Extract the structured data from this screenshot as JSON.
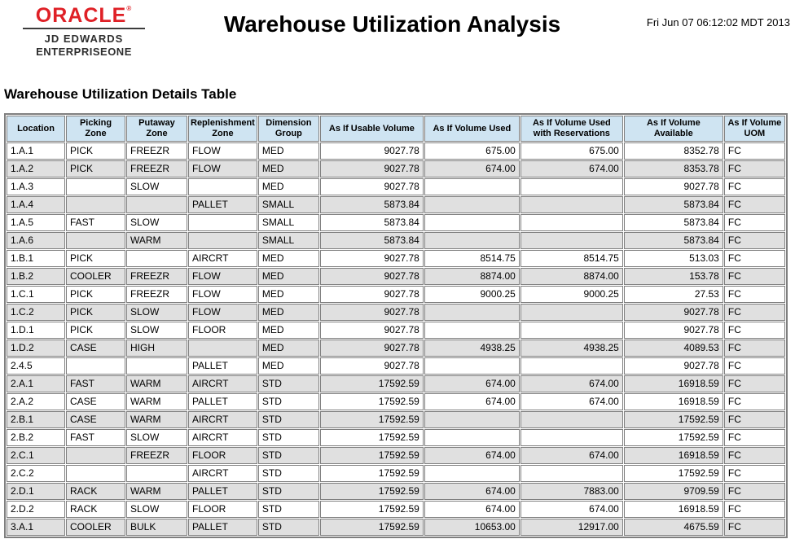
{
  "page": {
    "logo": {
      "brand": "ORACLE",
      "reg_mark": "®",
      "line1": "JD EDWARDS",
      "line2": "ENTERPRISEONE"
    },
    "title": "Warehouse Utilization Analysis",
    "datetime": "Fri Jun 07 06:12:02 MDT 2013",
    "section_title": "Warehouse Utilization Details Table"
  },
  "colors": {
    "oracle_red": "#df2026",
    "table_header_bg": "#cfe4f2",
    "row_alt_bg": "#e0e0e0",
    "table_border": "#7f7f7f"
  },
  "table": {
    "columns": [
      {
        "label": [
          "Location"
        ]
      },
      {
        "label": [
          "Picking",
          "Zone"
        ]
      },
      {
        "label": [
          "Putaway",
          "Zone"
        ]
      },
      {
        "label": [
          "Replenishment",
          "Zone"
        ]
      },
      {
        "label": [
          "Dimension",
          "Group"
        ]
      },
      {
        "label": [
          "As If Usable Volume"
        ]
      },
      {
        "label": [
          "As If Volume Used"
        ]
      },
      {
        "label": [
          "As If Volume Used",
          "with Reservations"
        ]
      },
      {
        "label": [
          "As If Volume Available"
        ]
      },
      {
        "label": [
          "As If Volume",
          "UOM"
        ]
      }
    ],
    "rows": [
      [
        "1.A.1",
        "PICK",
        "FREEZR",
        "FLOW",
        "MED",
        "9027.78",
        "675.00",
        "675.00",
        "8352.78",
        "FC"
      ],
      [
        "1.A.2",
        "PICK",
        "FREEZR",
        "FLOW",
        "MED",
        "9027.78",
        "674.00",
        "674.00",
        "8353.78",
        "FC"
      ],
      [
        "1.A.3",
        "",
        "SLOW",
        "",
        "MED",
        "9027.78",
        "",
        "",
        "9027.78",
        "FC"
      ],
      [
        "1.A.4",
        "",
        "",
        "PALLET",
        "SMALL",
        "5873.84",
        "",
        "",
        "5873.84",
        "FC"
      ],
      [
        "1.A.5",
        "FAST",
        "SLOW",
        "",
        "SMALL",
        "5873.84",
        "",
        "",
        "5873.84",
        "FC"
      ],
      [
        "1.A.6",
        "",
        "WARM",
        "",
        "SMALL",
        "5873.84",
        "",
        "",
        "5873.84",
        "FC"
      ],
      [
        "1.B.1",
        "PICK",
        "",
        "AIRCRT",
        "MED",
        "9027.78",
        "8514.75",
        "8514.75",
        "513.03",
        "FC"
      ],
      [
        "1.B.2",
        "COOLER",
        "FREEZR",
        "FLOW",
        "MED",
        "9027.78",
        "8874.00",
        "8874.00",
        "153.78",
        "FC"
      ],
      [
        "1.C.1",
        "PICK",
        "FREEZR",
        "FLOW",
        "MED",
        "9027.78",
        "9000.25",
        "9000.25",
        "27.53",
        "FC"
      ],
      [
        "1.C.2",
        "PICK",
        "SLOW",
        "FLOW",
        "MED",
        "9027.78",
        "",
        "",
        "9027.78",
        "FC"
      ],
      [
        "1.D.1",
        "PICK",
        "SLOW",
        "FLOOR",
        "MED",
        "9027.78",
        "",
        "",
        "9027.78",
        "FC"
      ],
      [
        "1.D.2",
        "CASE",
        "HIGH",
        "",
        "MED",
        "9027.78",
        "4938.25",
        "4938.25",
        "4089.53",
        "FC"
      ],
      [
        "2.4.5",
        "",
        "",
        "PALLET",
        "MED",
        "9027.78",
        "",
        "",
        "9027.78",
        "FC"
      ],
      [
        "2.A.1",
        "FAST",
        "WARM",
        "AIRCRT",
        "STD",
        "17592.59",
        "674.00",
        "674.00",
        "16918.59",
        "FC"
      ],
      [
        "2.A.2",
        "CASE",
        "WARM",
        "PALLET",
        "STD",
        "17592.59",
        "674.00",
        "674.00",
        "16918.59",
        "FC"
      ],
      [
        "2.B.1",
        "CASE",
        "WARM",
        "AIRCRT",
        "STD",
        "17592.59",
        "",
        "",
        "17592.59",
        "FC"
      ],
      [
        "2.B.2",
        "FAST",
        "SLOW",
        "AIRCRT",
        "STD",
        "17592.59",
        "",
        "",
        "17592.59",
        "FC"
      ],
      [
        "2.C.1",
        "",
        "FREEZR",
        "FLOOR",
        "STD",
        "17592.59",
        "674.00",
        "674.00",
        "16918.59",
        "FC"
      ],
      [
        "2.C.2",
        "",
        "",
        "AIRCRT",
        "STD",
        "17592.59",
        "",
        "",
        "17592.59",
        "FC"
      ],
      [
        "2.D.1",
        "RACK",
        "WARM",
        "PALLET",
        "STD",
        "17592.59",
        "674.00",
        "7883.00",
        "9709.59",
        "FC"
      ],
      [
        "2.D.2",
        "RACK",
        "SLOW",
        "FLOOR",
        "STD",
        "17592.59",
        "674.00",
        "674.00",
        "16918.59",
        "FC"
      ],
      [
        "3.A.1",
        "COOLER",
        "BULK",
        "PALLET",
        "STD",
        "17592.59",
        "10653.00",
        "12917.00",
        "4675.59",
        "FC"
      ]
    ]
  }
}
